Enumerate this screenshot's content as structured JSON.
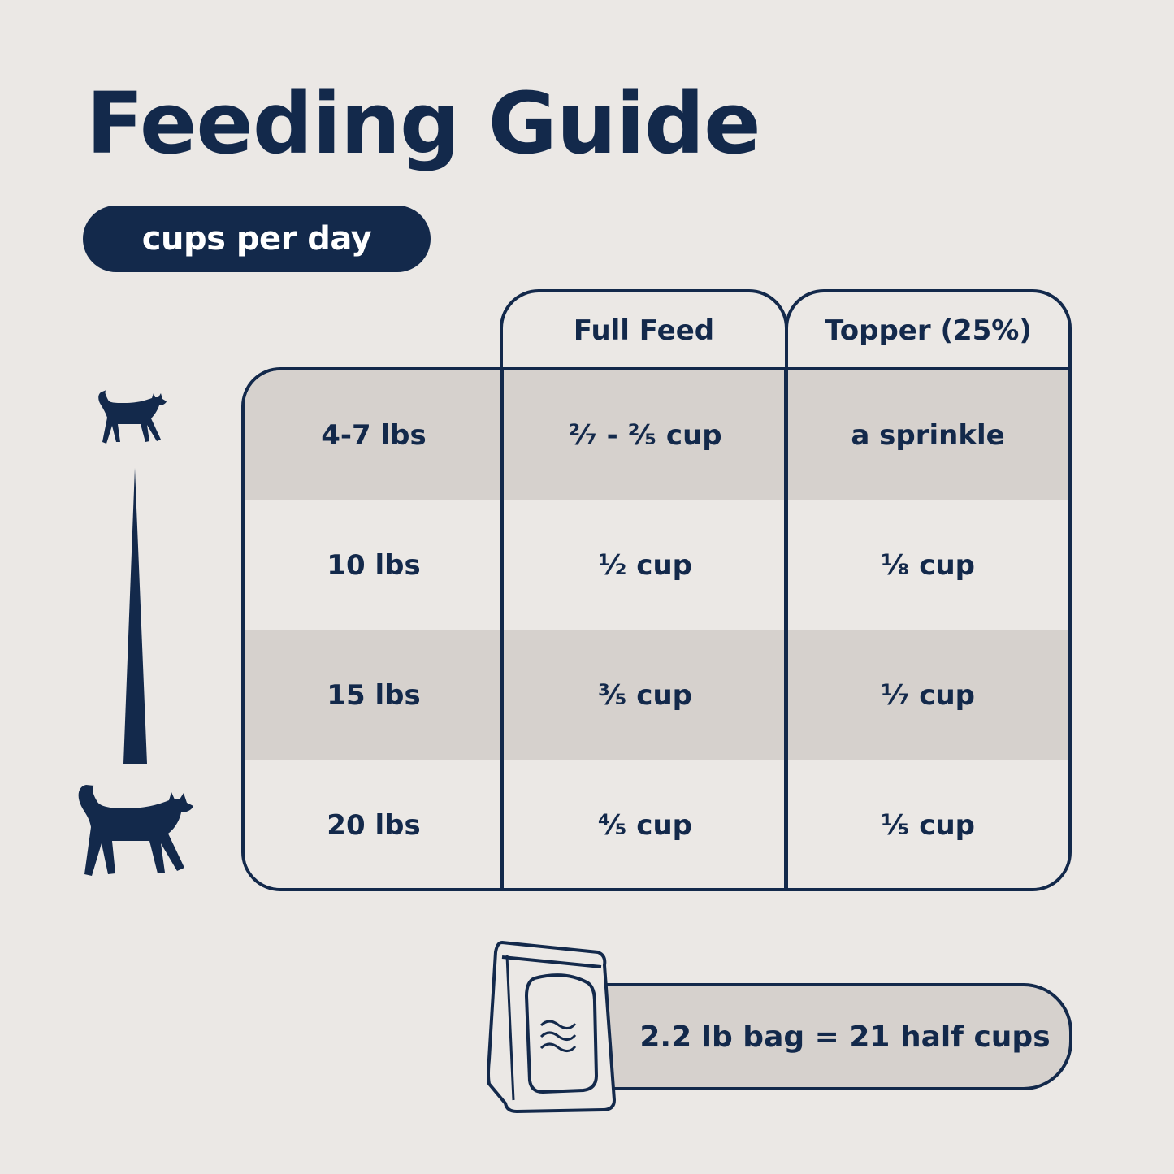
{
  "title": "Feeding Guide",
  "unit_pill": "cups per day",
  "colors": {
    "navy": "#13294b",
    "background": "#ebe8e5",
    "row_shade": "#d6d1cd"
  },
  "table": {
    "headers": [
      "Full Feed",
      "Topper (25%)"
    ],
    "rows": [
      {
        "weight": "4-7 lbs",
        "full_feed": "²⁄₇ - ²⁄₅ cup",
        "topper": "a sprinkle"
      },
      {
        "weight": "10 lbs",
        "full_feed": "¹⁄₂ cup",
        "topper": "¹⁄₈ cup"
      },
      {
        "weight": "15 lbs",
        "full_feed": "³⁄₅ cup",
        "topper": "¹⁄₇ cup"
      },
      {
        "weight": "20 lbs",
        "full_feed": "⁴⁄₅ cup",
        "topper": "¹⁄₅ cup"
      }
    ]
  },
  "icons": {
    "small_cat": "cat-small-icon",
    "large_cat": "cat-large-icon",
    "scale": "size-wedge-icon",
    "bag": "food-bag-icon"
  },
  "bag_note": "2.2 lb bag = 21 half cups"
}
